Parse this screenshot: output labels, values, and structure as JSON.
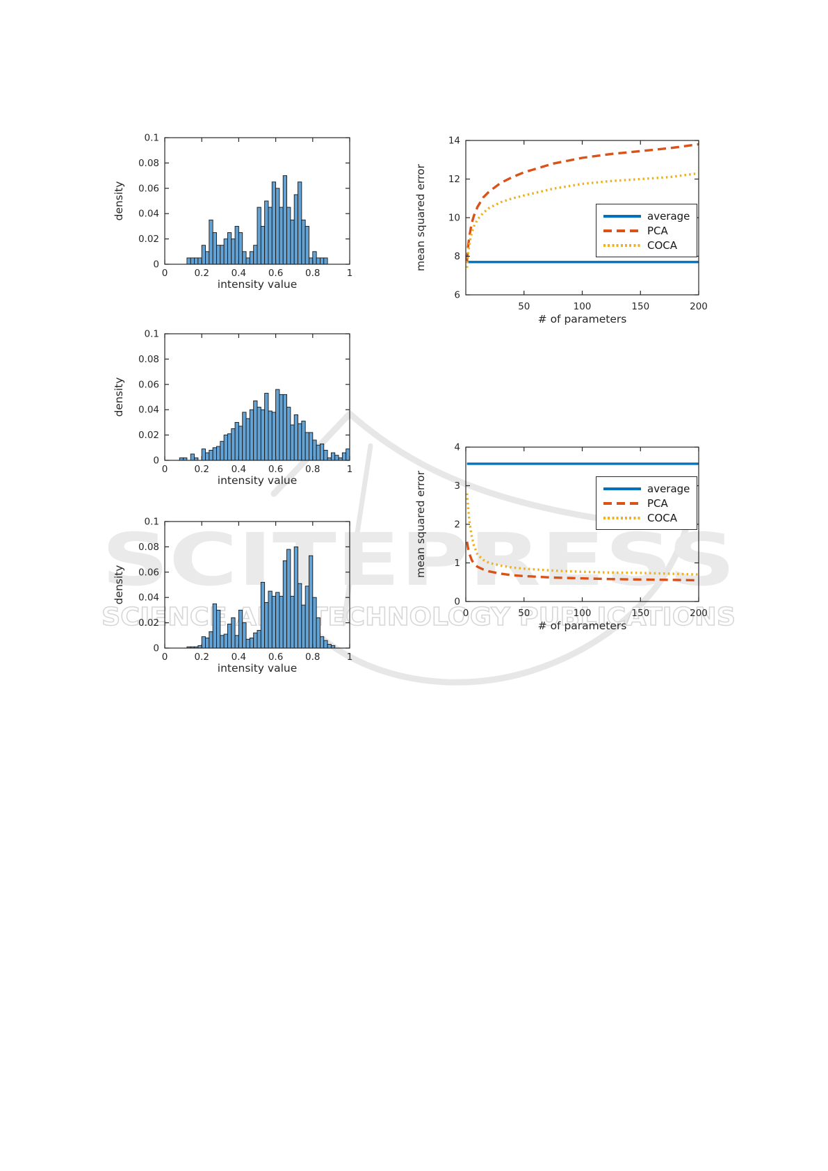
{
  "watermark": {
    "title": "SCITEPRESS",
    "subtitle": "SCIENCE AND TECHNOLOGY PUBLICATIONS",
    "title_color": "#eaeaea",
    "subtitle_outline_color": "#d6d6d6",
    "swoosh_color": "#e7e7e7"
  },
  "colors": {
    "blue": "#0072BD",
    "orange": "#D95319",
    "yellow": "#EDB120",
    "bar_fill": "#63A2D2",
    "bar_edge": "#141414",
    "axis": "#262626"
  },
  "chart_data": [
    {
      "id": "hist-top",
      "type": "bar",
      "xlabel": "intensity value",
      "ylabel": "density",
      "xlim": [
        0,
        1
      ],
      "ylim": [
        0,
        0.1
      ],
      "xticks": [
        0,
        0.2,
        0.4,
        0.6,
        0.8,
        1
      ],
      "xtick_labels": [
        "0",
        "0.2",
        "0.4",
        "0.6",
        "0.8",
        "1"
      ],
      "yticks": [
        0,
        0.02,
        0.04,
        0.06,
        0.08,
        0.1
      ],
      "ytick_labels": [
        "0",
        "0.02",
        "0.04",
        "0.06",
        "0.08",
        "0.1"
      ],
      "bin_width": 0.02,
      "bin_centers": [
        0.13,
        0.15,
        0.17,
        0.19,
        0.21,
        0.23,
        0.25,
        0.27,
        0.29,
        0.31,
        0.33,
        0.35,
        0.37,
        0.39,
        0.41,
        0.43,
        0.45,
        0.47,
        0.49,
        0.51,
        0.53,
        0.55,
        0.57,
        0.59,
        0.61,
        0.63,
        0.65,
        0.67,
        0.69,
        0.71,
        0.73,
        0.75,
        0.77,
        0.79,
        0.81,
        0.83,
        0.85,
        0.87
      ],
      "values": [
        0.005,
        0.005,
        0.005,
        0.005,
        0.015,
        0.01,
        0.035,
        0.025,
        0.015,
        0.015,
        0.02,
        0.025,
        0.02,
        0.03,
        0.025,
        0.01,
        0.005,
        0.01,
        0.015,
        0.045,
        0.03,
        0.05,
        0.045,
        0.065,
        0.06,
        0.045,
        0.07,
        0.045,
        0.035,
        0.055,
        0.065,
        0.035,
        0.03,
        0.005,
        0.01,
        0.005,
        0.005,
        0.005
      ]
    },
    {
      "id": "mse-top",
      "type": "line",
      "xlabel": "# of parameters",
      "ylabel": "mean squared error",
      "xlim": [
        0,
        200
      ],
      "ylim": [
        6,
        14
      ],
      "xticks": [
        50,
        100,
        150,
        200
      ],
      "xtick_labels": [
        "50",
        "100",
        "150",
        "200"
      ],
      "yticks": [
        6,
        8,
        10,
        12,
        14
      ],
      "ytick_labels": [
        "6",
        "8",
        "10",
        "12",
        "14"
      ],
      "legend_position": "right-center",
      "series": [
        {
          "name": "average",
          "style": "solid",
          "color": "#0072BD",
          "points": [
            [
              1,
              7.7
            ],
            [
              200,
              7.7
            ]
          ]
        },
        {
          "name": "PCA",
          "style": "dashed",
          "color": "#D95319",
          "points": [
            [
              1,
              7.75
            ],
            [
              2,
              8.5
            ],
            [
              3,
              9.0
            ],
            [
              5,
              9.7
            ],
            [
              7,
              10.1
            ],
            [
              10,
              10.55
            ],
            [
              15,
              11.05
            ],
            [
              20,
              11.35
            ],
            [
              30,
              11.8
            ],
            [
              40,
              12.1
            ],
            [
              50,
              12.35
            ],
            [
              75,
              12.8
            ],
            [
              100,
              13.1
            ],
            [
              125,
              13.3
            ],
            [
              150,
              13.45
            ],
            [
              175,
              13.6
            ],
            [
              200,
              13.8
            ]
          ]
        },
        {
          "name": "COCA",
          "style": "dotted",
          "color": "#EDB120",
          "points": [
            [
              1,
              7.4
            ],
            [
              2,
              8.1
            ],
            [
              3,
              8.6
            ],
            [
              5,
              9.2
            ],
            [
              7,
              9.55
            ],
            [
              10,
              9.9
            ],
            [
              15,
              10.25
            ],
            [
              20,
              10.5
            ],
            [
              30,
              10.8
            ],
            [
              40,
              11.0
            ],
            [
              50,
              11.15
            ],
            [
              75,
              11.5
            ],
            [
              100,
              11.75
            ],
            [
              125,
              11.9
            ],
            [
              150,
              12.0
            ],
            [
              175,
              12.1
            ],
            [
              200,
              12.3
            ]
          ]
        }
      ]
    },
    {
      "id": "hist-middle",
      "type": "bar",
      "xlabel": "intensity value",
      "ylabel": "density",
      "xlim": [
        0,
        1
      ],
      "ylim": [
        0,
        0.1
      ],
      "xticks": [
        0,
        0.2,
        0.4,
        0.6,
        0.8,
        1
      ],
      "xtick_labels": [
        "0",
        "0.2",
        "0.4",
        "0.6",
        "0.8",
        "1"
      ],
      "yticks": [
        0,
        0.02,
        0.04,
        0.06,
        0.08,
        0.1
      ],
      "ytick_labels": [
        "0",
        "0.02",
        "0.04",
        "0.06",
        "0.08",
        "0.1"
      ],
      "bin_width": 0.02,
      "bin_centers": [
        0.09,
        0.11,
        0.13,
        0.15,
        0.17,
        0.19,
        0.21,
        0.23,
        0.25,
        0.27,
        0.29,
        0.31,
        0.33,
        0.35,
        0.37,
        0.39,
        0.41,
        0.43,
        0.45,
        0.47,
        0.49,
        0.51,
        0.53,
        0.55,
        0.57,
        0.59,
        0.61,
        0.63,
        0.65,
        0.67,
        0.69,
        0.71,
        0.73,
        0.75,
        0.77,
        0.79,
        0.81,
        0.83,
        0.85,
        0.87,
        0.89,
        0.91,
        0.93,
        0.95,
        0.97,
        0.99
      ],
      "values": [
        0.002,
        0.002,
        0,
        0.005,
        0.002,
        0,
        0.009,
        0.006,
        0.008,
        0.01,
        0.011,
        0.015,
        0.02,
        0.021,
        0.025,
        0.03,
        0.027,
        0.038,
        0.033,
        0.04,
        0.047,
        0.042,
        0.04,
        0.053,
        0.039,
        0.038,
        0.056,
        0.052,
        0.052,
        0.042,
        0.028,
        0.036,
        0.029,
        0.031,
        0.022,
        0.022,
        0.016,
        0.012,
        0.013,
        0.008,
        0.002,
        0.006,
        0.004,
        0.002,
        0.006,
        0.009
      ]
    },
    {
      "id": "mse-bottom",
      "type": "line",
      "xlabel": "# of parameters",
      "ylabel": "mean squared error",
      "xlim": [
        0,
        200
      ],
      "ylim": [
        0,
        4
      ],
      "xticks": [
        0,
        50,
        100,
        150,
        200
      ],
      "xtick_labels": [
        "0",
        "50",
        "100",
        "150",
        "200"
      ],
      "yticks": [
        0,
        1,
        2,
        3,
        4
      ],
      "ytick_labels": [
        "0",
        "1",
        "2",
        "3",
        "4"
      ],
      "legend_position": "right-center",
      "series": [
        {
          "name": "average",
          "style": "solid",
          "color": "#0072BD",
          "points": [
            [
              1,
              3.57
            ],
            [
              200,
              3.57
            ]
          ]
        },
        {
          "name": "PCA",
          "style": "dashed",
          "color": "#D95319",
          "points": [
            [
              1,
              1.55
            ],
            [
              2,
              1.38
            ],
            [
              3,
              1.25
            ],
            [
              5,
              1.08
            ],
            [
              7,
              0.98
            ],
            [
              10,
              0.9
            ],
            [
              15,
              0.83
            ],
            [
              20,
              0.78
            ],
            [
              30,
              0.72
            ],
            [
              40,
              0.68
            ],
            [
              50,
              0.66
            ],
            [
              75,
              0.62
            ],
            [
              100,
              0.6
            ],
            [
              125,
              0.58
            ],
            [
              150,
              0.57
            ],
            [
              175,
              0.56
            ],
            [
              200,
              0.55
            ]
          ]
        },
        {
          "name": "COCA",
          "style": "dotted",
          "color": "#EDB120",
          "points": [
            [
              1,
              2.8
            ],
            [
              2,
              2.45
            ],
            [
              3,
              2.1
            ],
            [
              5,
              1.7
            ],
            [
              7,
              1.45
            ],
            [
              10,
              1.22
            ],
            [
              15,
              1.08
            ],
            [
              20,
              1.0
            ],
            [
              30,
              0.93
            ],
            [
              40,
              0.88
            ],
            [
              50,
              0.85
            ],
            [
              75,
              0.8
            ],
            [
              100,
              0.77
            ],
            [
              125,
              0.75
            ],
            [
              150,
              0.74
            ],
            [
              175,
              0.72
            ],
            [
              200,
              0.7
            ]
          ]
        }
      ]
    },
    {
      "id": "hist-bottom",
      "type": "bar",
      "xlabel": "intensity value",
      "ylabel": "density",
      "xlim": [
        0,
        1
      ],
      "ylim": [
        0,
        0.1
      ],
      "xticks": [
        0,
        0.2,
        0.4,
        0.6,
        0.8,
        1
      ],
      "xtick_labels": [
        "0",
        "0.2",
        "0.4",
        "0.6",
        "0.8",
        "1"
      ],
      "yticks": [
        0,
        0.02,
        0.04,
        0.06,
        0.08,
        0.1
      ],
      "ytick_labels": [
        "0",
        "0.02",
        "0.04",
        "0.06",
        "0.08",
        "0.1"
      ],
      "bin_width": 0.02,
      "bin_centers": [
        0.13,
        0.15,
        0.17,
        0.19,
        0.21,
        0.23,
        0.25,
        0.27,
        0.29,
        0.31,
        0.33,
        0.35,
        0.37,
        0.39,
        0.41,
        0.43,
        0.45,
        0.47,
        0.49,
        0.51,
        0.53,
        0.55,
        0.57,
        0.59,
        0.61,
        0.63,
        0.65,
        0.67,
        0.69,
        0.71,
        0.73,
        0.75,
        0.77,
        0.79,
        0.81,
        0.83,
        0.85,
        0.87,
        0.89,
        0.91
      ],
      "values": [
        0.001,
        0.001,
        0.001,
        0.002,
        0.009,
        0.008,
        0.013,
        0.035,
        0.03,
        0.01,
        0.011,
        0.019,
        0.024,
        0.01,
        0.03,
        0.02,
        0.007,
        0.008,
        0.012,
        0.014,
        0.052,
        0.036,
        0.045,
        0.041,
        0.044,
        0.041,
        0.069,
        0.078,
        0.041,
        0.08,
        0.051,
        0.034,
        0.049,
        0.073,
        0.04,
        0.024,
        0.009,
        0.006,
        0.003,
        0.002
      ]
    }
  ]
}
